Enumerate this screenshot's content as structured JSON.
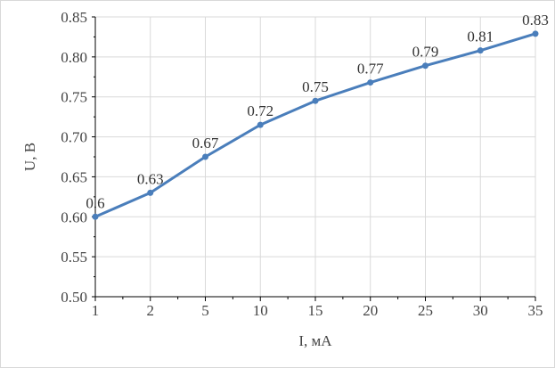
{
  "chart_data": {
    "type": "line",
    "categories": [
      "1",
      "2",
      "5",
      "10",
      "15",
      "20",
      "25",
      "30",
      "35"
    ],
    "series": [
      {
        "values": [
          0.6,
          0.63,
          0.675,
          0.715,
          0.745,
          0.768,
          0.789,
          0.808,
          0.829
        ],
        "data_labels": [
          "0.6",
          "0.63",
          "0.67",
          "0.72",
          "0.75",
          "0.77",
          "0.79",
          "0.81",
          "0.83"
        ],
        "color": "#4a7ebb"
      }
    ],
    "y_ticks": [
      "0.50",
      "0.55",
      "0.60",
      "0.65",
      "0.70",
      "0.75",
      "0.80",
      "0.85"
    ],
    "ylim": [
      0.5,
      0.85
    ],
    "xlabel": "I, мА",
    "ylabel": "U, В",
    "grid": true
  }
}
